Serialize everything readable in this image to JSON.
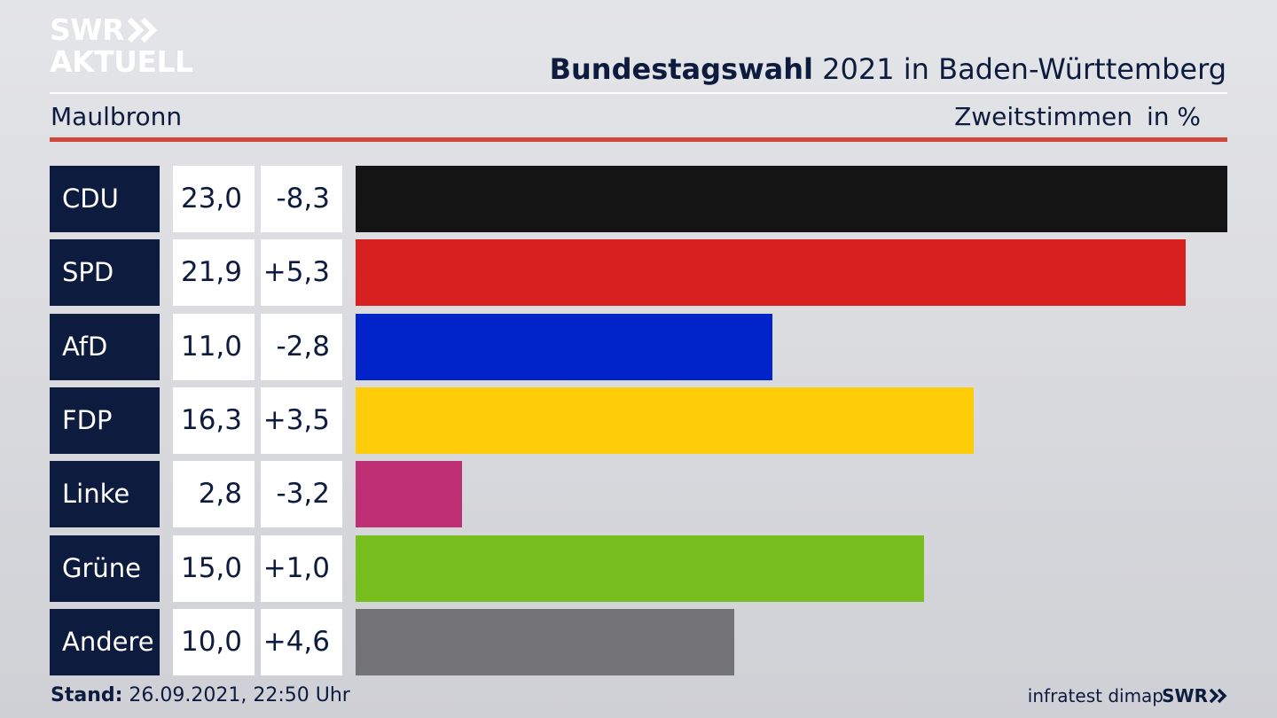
{
  "logo": {
    "line1": "SWR",
    "line2": "AKTUELL",
    "chevron_icon": "double-chevron-right-icon"
  },
  "header": {
    "title_bold": "Bundestagswahl",
    "title_rest": " 2021 in Baden-Württemberg",
    "region": "Maulbronn",
    "metric": "Zweitstimmen",
    "unit": "in %"
  },
  "colors": {
    "navy": "#0d1b3e",
    "accent_red": "#d0473c"
  },
  "chart_data": {
    "type": "bar",
    "orientation": "horizontal",
    "categories": [
      "CDU",
      "SPD",
      "AfD",
      "FDP",
      "Linke",
      "Grüne",
      "Andere"
    ],
    "values": [
      23.0,
      21.9,
      11.0,
      16.3,
      2.8,
      15.0,
      10.0
    ],
    "labels": [
      "23,0",
      "21,9",
      "11,0",
      "16,3",
      "2,8",
      "15,0",
      "10,0"
    ],
    "changes": [
      "-8,3",
      "+5,3",
      "-2,8",
      "+3,5",
      "-3,2",
      "+1,0",
      "+4,6"
    ],
    "colors": [
      "#141414",
      "#d82020",
      "#0024c9",
      "#ffcc0a",
      "#bf2f73",
      "#78be1e",
      "#737375"
    ],
    "xlim": [
      0,
      23.0
    ]
  },
  "footer": {
    "stand_label": "Stand:",
    "stand_value": " 26.09.2021, 22:50 Uhr",
    "source": "infratest dimap",
    "swr_small": "SWR"
  }
}
